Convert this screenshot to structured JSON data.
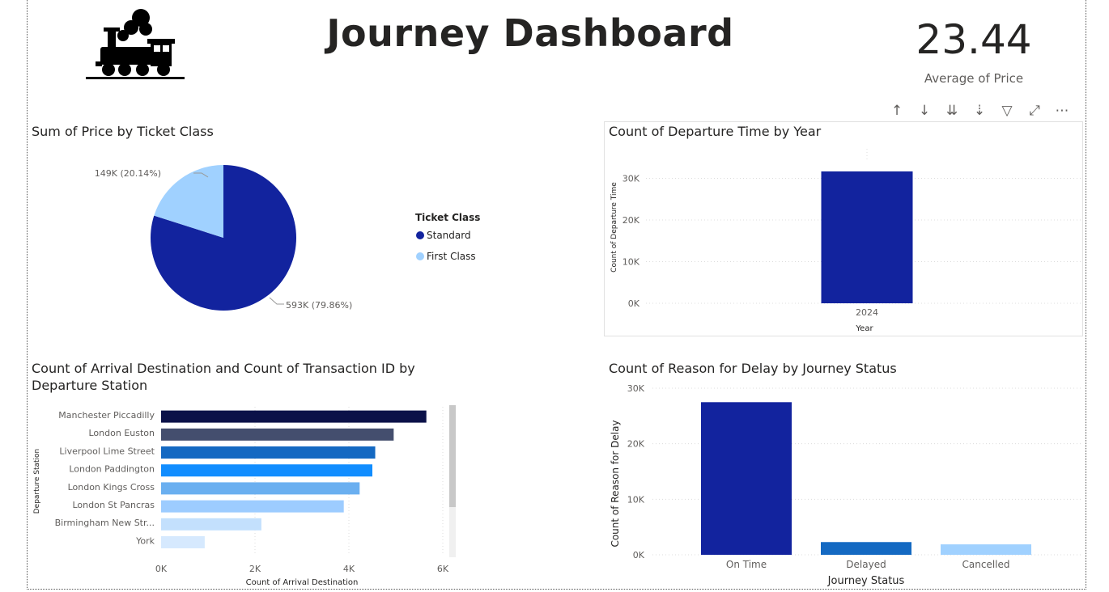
{
  "header": {
    "title": "Journey Dashboard",
    "kpi_value": "23.44",
    "kpi_label": "Average of Price"
  },
  "toolbar": {
    "icons": [
      "arrow-up-icon",
      "arrow-down-icon",
      "double-arrow-down-icon",
      "expand-hierarchy-icon",
      "filter-icon",
      "focus-mode-icon",
      "more-options-icon"
    ],
    "glyphs": [
      "↑",
      "↓",
      "⇊",
      "⇣",
      "▽",
      "⤢",
      "⋯"
    ]
  },
  "charts": {
    "pie": {
      "title": "Sum of Price by Ticket Class",
      "legend_title": "Ticket Class",
      "label_first": "149K (20.14%)",
      "label_standard": "593K (79.86%)"
    },
    "year": {
      "title": "Count of Departure Time by Year",
      "ylabel": "Count of Departure Time",
      "xlabel": "Year"
    },
    "stations": {
      "title_line1": "Count of Arrival Destination and Count of Transaction ID by",
      "title_line2": "Departure Station",
      "ylabel": "Departure Station",
      "xlabel": "Count of Arrival Destination"
    },
    "delay": {
      "title": "Count of Reason for Delay by Journey Status",
      "ylabel": "Count of Reason for Delay",
      "xlabel": "Journey Status"
    }
  },
  "chart_data": [
    {
      "type": "pie",
      "title": "Sum of Price by Ticket Class",
      "legend_title": "Ticket Class",
      "legend_placement": "right",
      "slices": [
        {
          "name": "Standard",
          "value": 593000,
          "percent": 79.86,
          "label": "593K (79.86%)",
          "color": "#12239e"
        },
        {
          "name": "First Class",
          "value": 149000,
          "percent": 20.14,
          "label": "149K (20.14%)",
          "color": "#a0d1ff"
        }
      ]
    },
    {
      "type": "bar",
      "title": "Count of Departure Time by Year",
      "categories": [
        "2024"
      ],
      "values": [
        31653
      ],
      "ylim": [
        0,
        33000
      ],
      "yticks": [
        0,
        10000,
        20000,
        30000
      ],
      "ytick_labels": [
        "0K",
        "10K",
        "20K",
        "30K"
      ],
      "xlabel": "Year",
      "ylabel": "Count of Departure Time",
      "grid": true,
      "color": "#12239e"
    },
    {
      "type": "bar",
      "orientation": "horizontal",
      "title": "Count of Arrival Destination and Count of Transaction ID by Departure Station",
      "categories": [
        "Manchester Piccadilly",
        "London Euston",
        "Liverpool Lime Street",
        "London Paddington",
        "London Kings Cross",
        "London St Pancras",
        "Birmingham New Str...",
        "York"
      ],
      "values": [
        5650,
        4954,
        4561,
        4500,
        4229,
        3891,
        2136,
        929
      ],
      "colors": [
        "#0b1148",
        "#444e6e",
        "#1469c2",
        "#118dff",
        "#6aaff0",
        "#9dccff",
        "#c3e0fd",
        "#d6e9fe"
      ],
      "xlim": [
        0,
        6000
      ],
      "xticks": [
        0,
        2000,
        4000,
        6000
      ],
      "xtick_labels": [
        "0K",
        "2K",
        "4K",
        "6K"
      ],
      "xlabel": "Count of Arrival Destination",
      "ylabel": "Departure Station",
      "grid": true
    },
    {
      "type": "bar",
      "title": "Count of Reason for Delay by Journey Status",
      "categories": [
        "On Time",
        "Delayed",
        "Cancelled"
      ],
      "values": [
        27481,
        2292,
        1880
      ],
      "colors": [
        "#12239e",
        "#1469c2",
        "#a0d1ff"
      ],
      "ylim": [
        0,
        30000
      ],
      "yticks": [
        0,
        10000,
        20000,
        30000
      ],
      "ytick_labels": [
        "0K",
        "10K",
        "20K",
        "30K"
      ],
      "xlabel": "Journey Status",
      "ylabel": "Count of Reason for Delay",
      "grid": true
    }
  ]
}
